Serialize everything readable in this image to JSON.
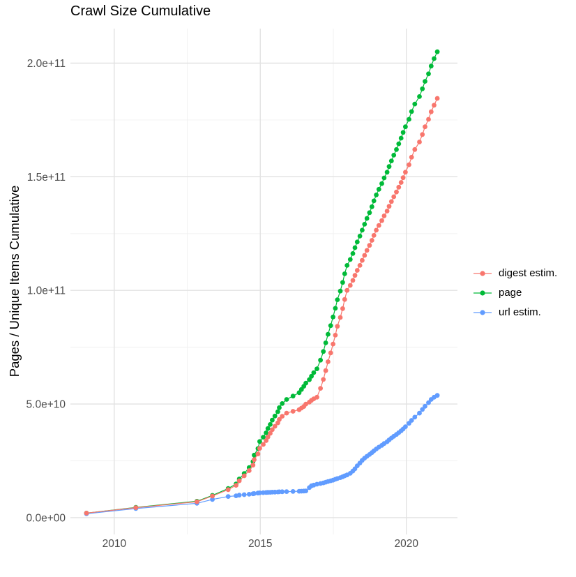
{
  "title": "Crawl Size Cumulative",
  "axes": {
    "y_title": "Pages / Unique Items Cumulative"
  },
  "legend": {
    "items": [
      {
        "id": "digest-estim",
        "label": "digest estim.",
        "color": "#F8766D"
      },
      {
        "id": "page",
        "label": "page",
        "color": "#00BA38"
      },
      {
        "id": "url-estim",
        "label": "url estim.",
        "color": "#619CFF"
      }
    ]
  },
  "chart_data": {
    "type": "line",
    "markers": true,
    "title": "Crawl Size Cumulative",
    "xlabel": "",
    "ylabel": "Pages / Unique Items Cumulative",
    "xlim": [
      2008.5,
      2021.75
    ],
    "ylim_e9": [
      -7.4,
      215.2
    ],
    "y_unit": "1e9 pages",
    "grid": {
      "major_color": "#E2E2E2",
      "minor_color": "#F0F0F0",
      "x_major_years": [
        2010,
        2015,
        2020
      ],
      "x_minor_years": [
        2012.5,
        2017.5
      ],
      "y_major_e9": [
        0,
        50,
        100,
        150,
        200
      ],
      "y_minor_e9": [
        25,
        75,
        125,
        175
      ]
    },
    "x_ticks": [
      {
        "year": 2010,
        "label": "2010"
      },
      {
        "year": 2015,
        "label": "2015"
      },
      {
        "year": 2020,
        "label": "2020"
      }
    ],
    "y_ticks": [
      {
        "value_e9": 0,
        "label": "0.0e+00"
      },
      {
        "value_e9": 50,
        "label": "5.0e+10"
      },
      {
        "value_e9": 100,
        "label": "1.0e+11"
      },
      {
        "value_e9": 150,
        "label": "1.5e+11"
      },
      {
        "value_e9": 200,
        "label": "2.0e+11"
      }
    ],
    "x": [
      2009.05,
      2010.74,
      2012.83,
      2013.36,
      2013.9,
      2014.17,
      2014.28,
      2014.45,
      2014.62,
      2014.75,
      2014.79,
      2014.92,
      2014.98,
      2015.1,
      2015.2,
      2015.26,
      2015.34,
      2015.41,
      2015.5,
      2015.6,
      2015.65,
      2015.75,
      2015.9,
      2016.12,
      2016.33,
      2016.41,
      2016.49,
      2016.56,
      2016.68,
      2016.75,
      2016.83,
      2016.94,
      2017.06,
      2017.16,
      2017.24,
      2017.32,
      2017.41,
      2017.49,
      2017.57,
      2017.64,
      2017.74,
      2017.82,
      2017.89,
      2017.97,
      2018.08,
      2018.17,
      2018.24,
      2018.32,
      2018.41,
      2018.49,
      2018.57,
      2018.65,
      2018.74,
      2018.82,
      2018.89,
      2018.97,
      2019.06,
      2019.16,
      2019.24,
      2019.34,
      2019.41,
      2019.49,
      2019.57,
      2019.66,
      2019.74,
      2019.82,
      2019.89,
      2019.97,
      2020.09,
      2020.18,
      2020.29,
      2020.45,
      2020.55,
      2020.64,
      2020.76,
      2020.85,
      2020.95,
      2021.06
    ],
    "series": [
      {
        "id": "page",
        "name": "page",
        "color": "#00BA38",
        "values_e9": [
          2,
          4.5,
          7.2,
          9.8,
          12.8,
          14.8,
          17,
          19.4,
          22,
          24.7,
          27.5,
          30.4,
          33.5,
          35.4,
          37.3,
          39.2,
          41,
          42.9,
          44.7,
          46.6,
          48.4,
          50.2,
          52,
          53.5,
          55,
          56.4,
          57.8,
          59.2,
          60.7,
          62.2,
          63.8,
          65.5,
          69.3,
          73.1,
          76.9,
          80.7,
          84.5,
          88.3,
          92.1,
          95.9,
          99.7,
          103.5,
          107.3,
          111,
          113.6,
          116.2,
          118.8,
          121.3,
          123.9,
          126.5,
          129.1,
          131.7,
          134.2,
          136.8,
          139.4,
          142,
          144.5,
          147,
          149.5,
          152,
          154.5,
          157,
          159.5,
          162,
          164.5,
          167,
          169.5,
          172,
          175.3,
          178.7,
          182,
          185.3,
          188.7,
          192,
          195.3,
          198.7,
          202,
          205
        ]
      },
      {
        "id": "url-estim",
        "name": "url estim.",
        "color": "#619CFF",
        "values_e9": [
          1.7,
          4,
          6.3,
          8,
          9.3,
          9.6,
          9.9,
          10.1,
          10.3,
          10.5,
          10.6,
          10.8,
          10.9,
          11,
          11.05,
          11.1,
          11.15,
          11.2,
          11.25,
          11.3,
          11.35,
          11.4,
          11.45,
          11.5,
          11.6,
          11.65,
          11.7,
          11.75,
          13.2,
          14,
          14.3,
          14.7,
          15,
          15.3,
          15.6,
          15.9,
          16.2,
          16.5,
          16.9,
          17.2,
          17.6,
          18,
          18.4,
          18.8,
          19.5,
          20.5,
          21.5,
          22.8,
          24,
          25.2,
          26.2,
          27,
          27.8,
          28.6,
          29.4,
          30.2,
          31,
          31.8,
          32.6,
          33.4,
          34.2,
          35,
          35.8,
          36.6,
          37.4,
          38.2,
          39,
          40,
          41.5,
          42.8,
          44.2,
          46,
          47.6,
          49,
          50.6,
          52,
          53,
          53.8
        ]
      },
      {
        "id": "digest-estim",
        "name": "digest estim.",
        "color": "#F8766D",
        "values_e9": [
          2,
          4.4,
          7,
          9.5,
          12.3,
          14.2,
          16.2,
          18.4,
          20.7,
          23.1,
          25.5,
          28,
          30.5,
          32.2,
          33.9,
          35.5,
          37.1,
          38.7,
          40.2,
          41.7,
          43.2,
          44.6,
          46,
          46.8,
          47.5,
          48.2,
          48.9,
          50,
          50.8,
          51.6,
          52.3,
          53,
          56.9,
          60.8,
          64.7,
          68.6,
          72.5,
          76.4,
          80.3,
          84.2,
          88.1,
          92,
          96,
          100,
          102.2,
          104.4,
          106.6,
          108.8,
          111,
          113.2,
          115.4,
          117.6,
          119.8,
          122,
          124.2,
          126.5,
          128.6,
          130.7,
          132.8,
          134.9,
          137,
          139.1,
          141.2,
          143.3,
          145.4,
          147.5,
          149.6,
          152,
          155.3,
          158.6,
          162,
          165.3,
          168.6,
          172,
          175.3,
          178.6,
          181.5,
          184.5
        ]
      }
    ]
  }
}
